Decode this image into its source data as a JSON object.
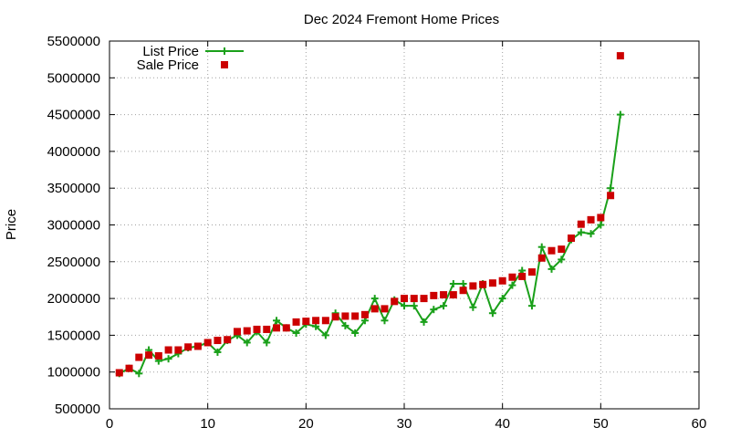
{
  "chart_data": {
    "type": "line",
    "title": "Dec 2024 Fremont Home Prices",
    "xlabel": "",
    "ylabel": "Price",
    "xlim": [
      0,
      60
    ],
    "ylim": [
      500000,
      5500000
    ],
    "xticks": [
      0,
      10,
      20,
      30,
      40,
      50,
      60
    ],
    "yticks": [
      500000,
      1000000,
      1500000,
      2000000,
      2500000,
      3000000,
      3500000,
      4000000,
      4500000,
      5000000,
      5500000
    ],
    "grid": true,
    "legend_position": "top-left",
    "x": [
      1,
      2,
      3,
      4,
      5,
      6,
      7,
      8,
      9,
      10,
      11,
      12,
      13,
      14,
      15,
      16,
      17,
      18,
      19,
      20,
      21,
      22,
      23,
      24,
      25,
      26,
      27,
      28,
      29,
      30,
      31,
      32,
      33,
      34,
      35,
      36,
      37,
      38,
      39,
      40,
      41,
      42,
      43,
      44,
      45,
      46,
      47,
      48,
      49,
      50,
      51,
      52
    ],
    "series": [
      {
        "name": "List Price",
        "style": "linespoints",
        "marker": "plus",
        "color": "#1aa01a",
        "values": [
          980000,
          1050000,
          980000,
          1300000,
          1150000,
          1180000,
          1250000,
          1330000,
          1350000,
          1400000,
          1270000,
          1430000,
          1500000,
          1400000,
          1550000,
          1400000,
          1700000,
          1600000,
          1530000,
          1650000,
          1620000,
          1500000,
          1800000,
          1630000,
          1530000,
          1700000,
          2000000,
          1700000,
          1980000,
          1900000,
          1900000,
          1680000,
          1850000,
          1900000,
          2200000,
          2200000,
          1880000,
          2200000,
          1800000,
          2000000,
          2180000,
          2380000,
          1900000,
          2700000,
          2400000,
          2530000,
          2800000,
          2900000,
          2880000,
          3000000,
          3500000,
          4500000
        ]
      },
      {
        "name": "Sale Price",
        "style": "points",
        "marker": "square",
        "color": "#cc0000",
        "values": [
          990000,
          1050000,
          1200000,
          1230000,
          1220000,
          1300000,
          1300000,
          1340000,
          1350000,
          1400000,
          1430000,
          1440000,
          1550000,
          1560000,
          1580000,
          1580000,
          1600000,
          1600000,
          1680000,
          1690000,
          1700000,
          1700000,
          1750000,
          1760000,
          1760000,
          1780000,
          1860000,
          1860000,
          1960000,
          2000000,
          2000000,
          2000000,
          2040000,
          2050000,
          2050000,
          2110000,
          2170000,
          2190000,
          2210000,
          2240000,
          2290000,
          2300000,
          2360000,
          2550000,
          2650000,
          2670000,
          2820000,
          3010000,
          3070000,
          3100000,
          3400000,
          5300000
        ]
      }
    ]
  }
}
